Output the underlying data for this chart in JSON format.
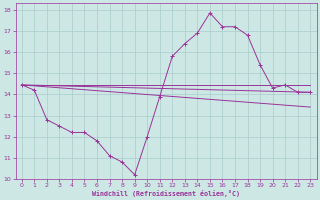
{
  "xlabel": "Windchill (Refroidissement éolien,°C)",
  "background_color": "#cde8e4",
  "grid_color": "#aacccc",
  "line_color": "#993399",
  "xlim": [
    -0.5,
    23.5
  ],
  "ylim": [
    10,
    18.3
  ],
  "yticks": [
    10,
    11,
    12,
    13,
    14,
    15,
    16,
    17,
    18
  ],
  "xticks": [
    0,
    1,
    2,
    3,
    4,
    5,
    6,
    7,
    8,
    9,
    10,
    11,
    12,
    13,
    14,
    15,
    16,
    17,
    18,
    19,
    20,
    21,
    22,
    23
  ],
  "curve_x": [
    0,
    1,
    2,
    3,
    4,
    5,
    6,
    7,
    8,
    9,
    10,
    11,
    12,
    13,
    14,
    15,
    16,
    17,
    18,
    19,
    20,
    21,
    22,
    23
  ],
  "curve_y": [
    14.45,
    14.2,
    12.8,
    12.5,
    12.2,
    12.2,
    11.8,
    11.1,
    10.8,
    10.2,
    12.0,
    13.9,
    15.8,
    16.4,
    16.9,
    17.85,
    17.2,
    17.2,
    16.8,
    15.4,
    14.3,
    14.45,
    14.1,
    14.1
  ],
  "line1_x": [
    0,
    23
  ],
  "line1_y": [
    14.45,
    14.1
  ],
  "line2_x": [
    0,
    23
  ],
  "line2_y": [
    14.45,
    14.45
  ],
  "line3_x": [
    0,
    23
  ],
  "line3_y": [
    14.45,
    13.4
  ]
}
